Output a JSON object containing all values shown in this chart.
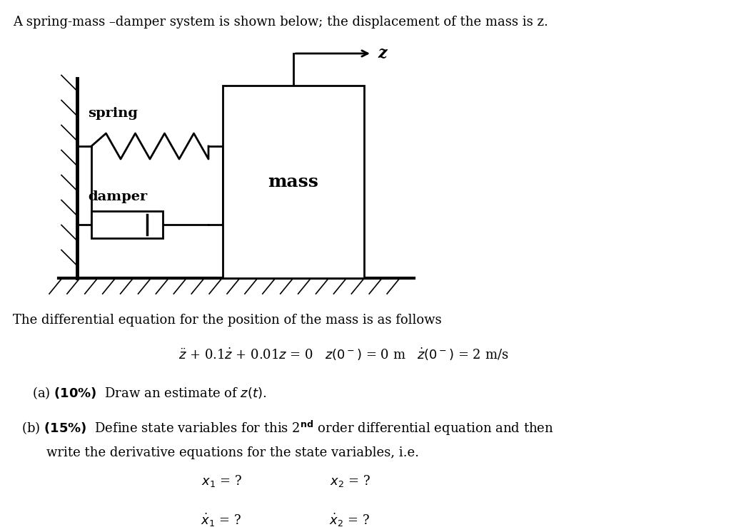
{
  "bg_color": "#ffffff",
  "text_color": "#000000",
  "title": "A spring-mass –damper system is shown below; the displacement of the mass is z.",
  "diff_eq_intro": "The differential equation for the position of the mass is as follows",
  "part_a": "(a) (10%)  Draw an estimate of z(t).",
  "part_b1": "(b) (15%)  Define state variables for this 2",
  "part_b2": "       write the derivative equations for the state variables, i.e.",
  "fontsize_title": 13,
  "fontsize_body": 13,
  "fontsize_diagram_label": 14,
  "fontsize_mass": 18
}
